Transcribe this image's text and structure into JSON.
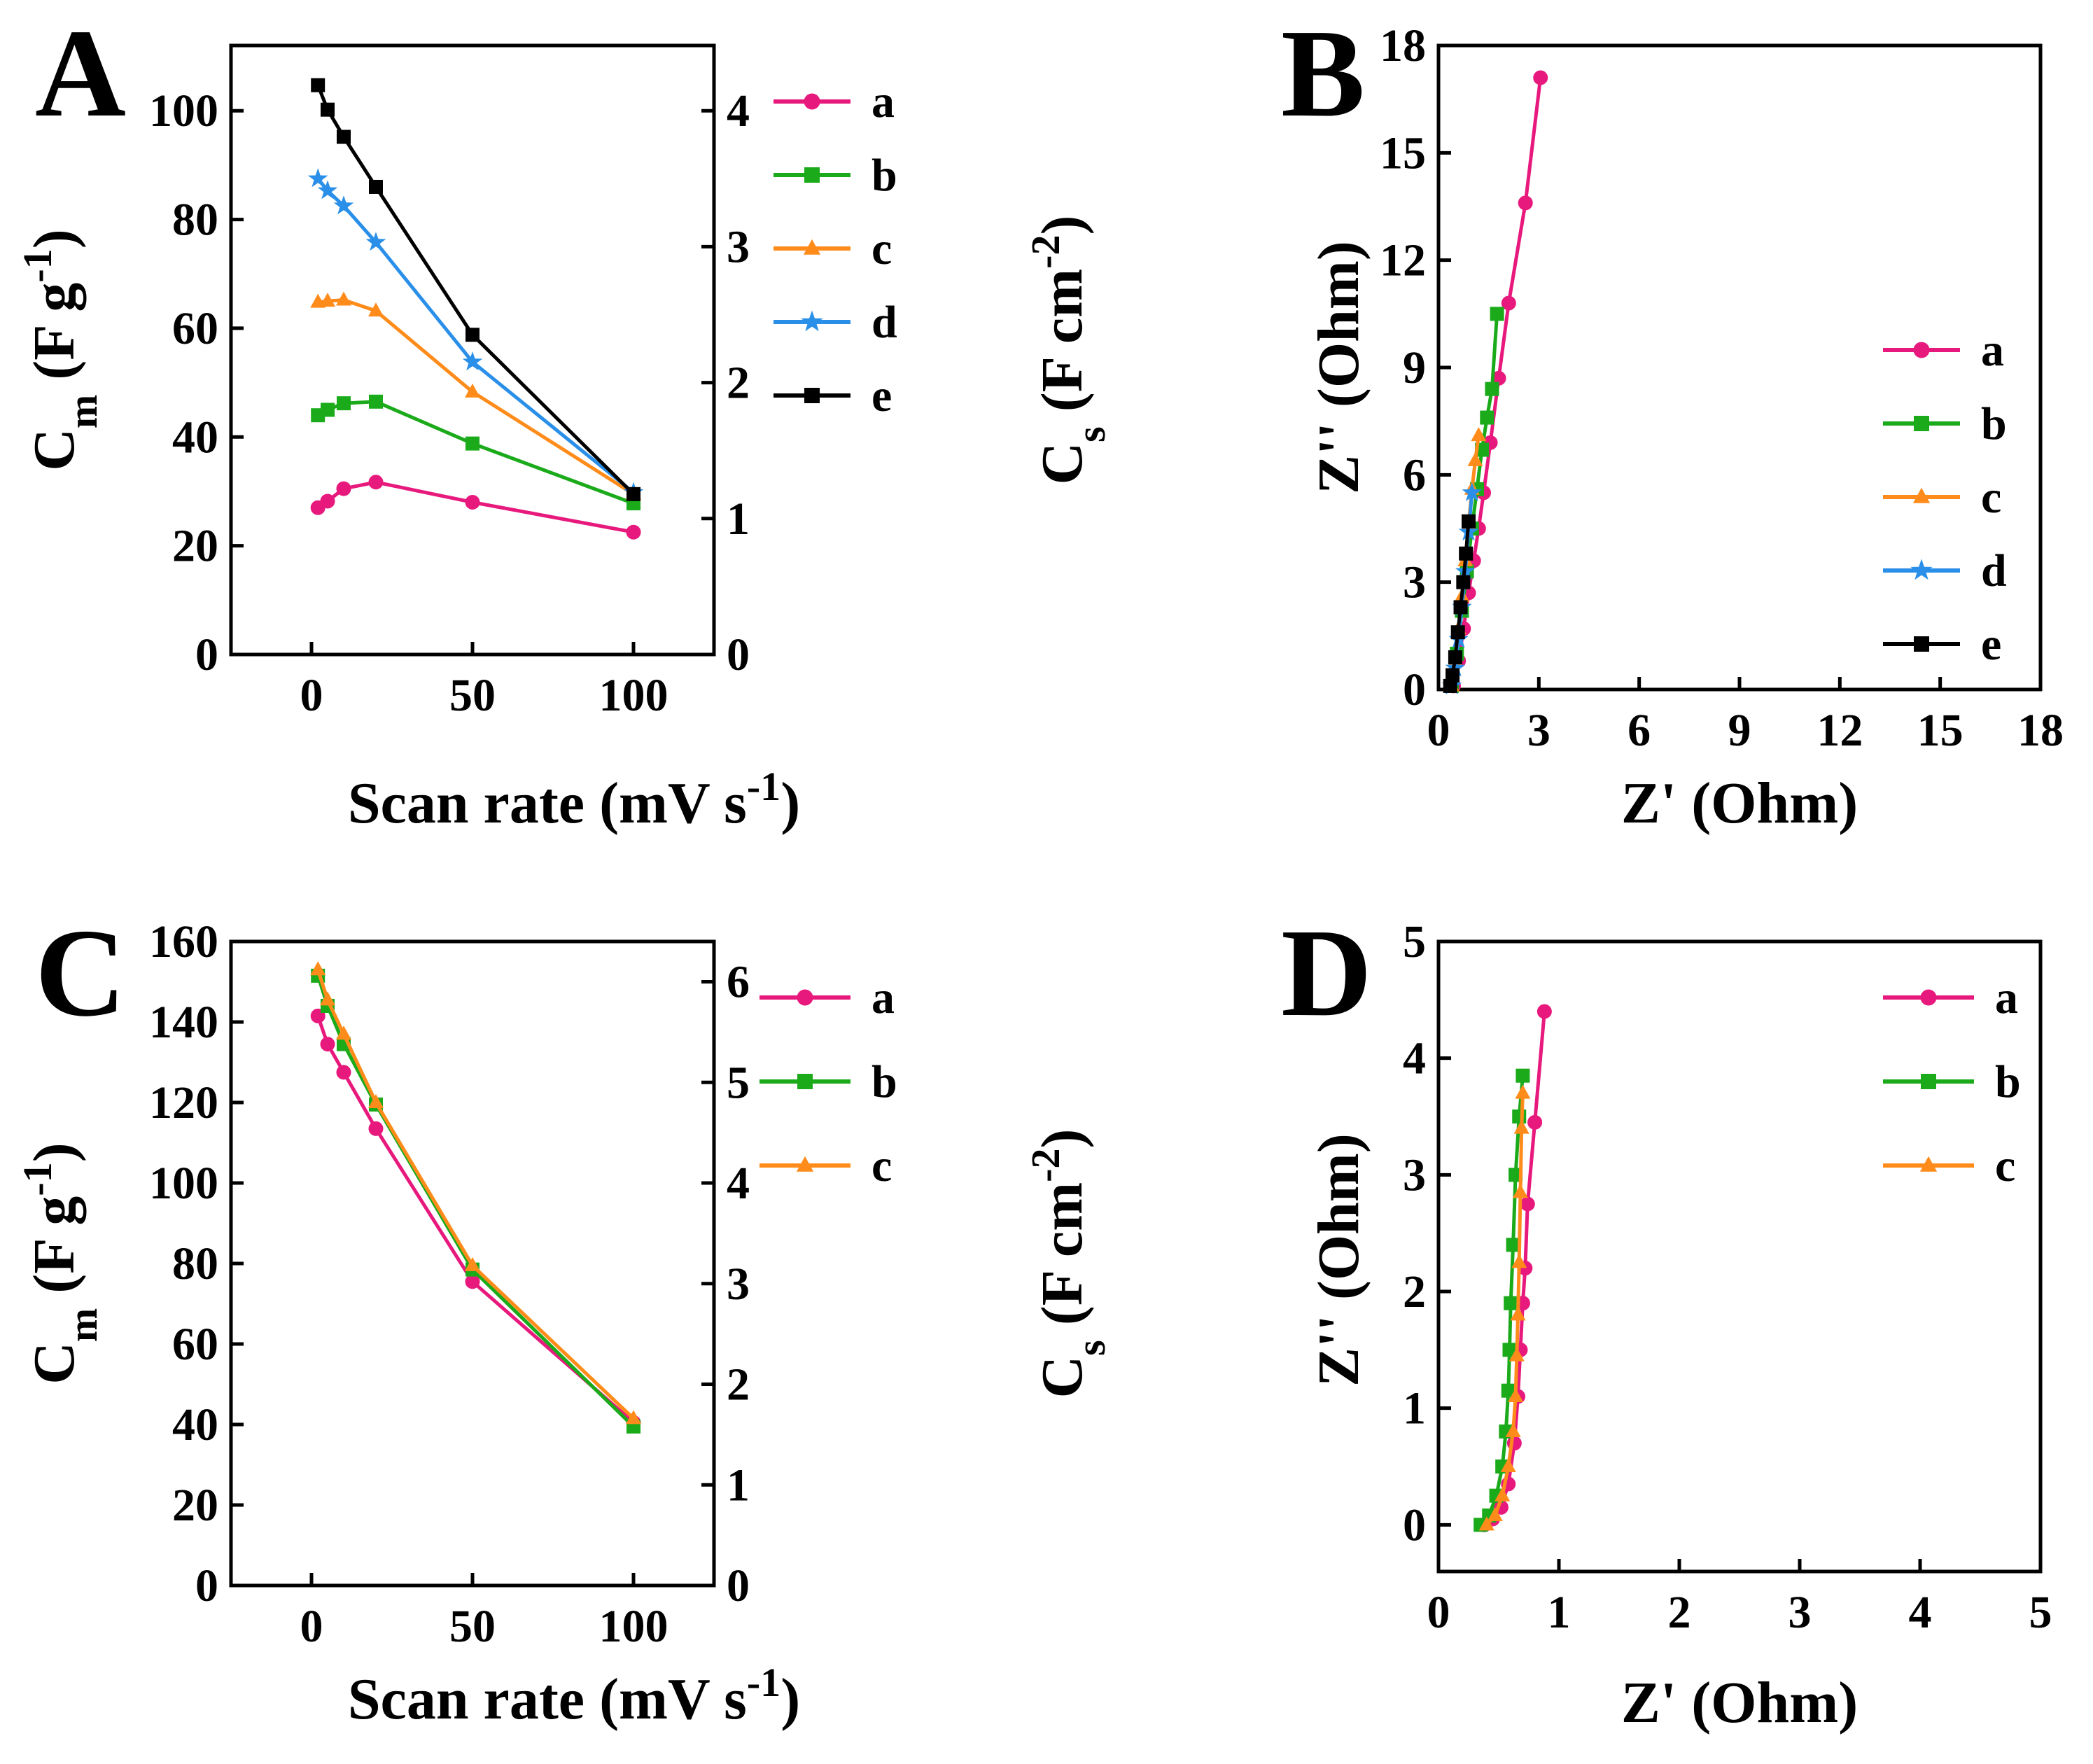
{
  "chart_data": [
    {
      "panel": "A",
      "type": "line",
      "xlabel_main": "Scan rate (mV s",
      "xlabel_sup": "-1",
      "xlabel_end": ")",
      "ylabel_main": "C",
      "ylabel_sub": "m",
      "ylabel_rest": " (F g",
      "ylabel_sup": "-1",
      "ylabel_end": ")",
      "y2label_main": "C",
      "y2label_sub": "s",
      "y2label_rest": " (F cm",
      "y2label_sup": "-2",
      "y2label_end": ")",
      "xlim": [
        -25,
        125
      ],
      "ylim": [
        0,
        112
      ],
      "y2lim": [
        0,
        4.48
      ],
      "xticks": [
        0,
        50,
        100
      ],
      "yticks": [
        0,
        20,
        40,
        60,
        80,
        100
      ],
      "y2ticks": [
        0,
        1,
        2,
        3,
        4
      ],
      "legend_position": "top-right",
      "series": [
        {
          "name": "a",
          "color": "#e8197d",
          "marker": "circle",
          "x": [
            2,
            5,
            10,
            20,
            50,
            100
          ],
          "values": [
            27,
            28.2,
            30.5,
            31.7,
            28,
            22.5
          ]
        },
        {
          "name": "b",
          "color": "#1aaa1a",
          "marker": "square",
          "x": [
            2,
            5,
            10,
            20,
            50,
            100
          ],
          "values": [
            44,
            45,
            46.2,
            46.5,
            38.8,
            27.8
          ]
        },
        {
          "name": "c",
          "color": "#ff8c1a",
          "marker": "triangle",
          "x": [
            2,
            5,
            10,
            20,
            50,
            100
          ],
          "values": [
            64.8,
            65,
            65.2,
            63.2,
            48.3,
            29.5
          ]
        },
        {
          "name": "d",
          "color": "#2a8fe8",
          "marker": "star",
          "x": [
            2,
            5,
            10,
            20,
            50,
            100
          ],
          "values": [
            87.5,
            85.3,
            82.5,
            75.8,
            53.8,
            29.8
          ]
        },
        {
          "name": "e",
          "color": "#000000",
          "marker": "square",
          "x": [
            2,
            5,
            10,
            20,
            50,
            100
          ],
          "values": [
            104.7,
            100.2,
            95.2,
            86,
            58.8,
            29.5
          ]
        }
      ]
    },
    {
      "panel": "B",
      "type": "line",
      "xlabel_main": "Z' (Ohm)",
      "ylabel_main": "Z'' (Ohm)",
      "xlim": [
        0,
        18
      ],
      "ylim": [
        0,
        18
      ],
      "xticks": [
        0,
        3,
        6,
        9,
        12,
        15,
        18
      ],
      "yticks": [
        0,
        3,
        6,
        9,
        12,
        15,
        18
      ],
      "legend_position": "right",
      "series": [
        {
          "name": "a",
          "color": "#e8197d",
          "marker": "circle",
          "x": [
            0.45,
            0.6,
            0.75,
            0.9,
            1.05,
            1.2,
            1.35,
            1.55,
            1.8,
            2.1,
            2.6,
            3.05
          ],
          "values": [
            0.1,
            0.8,
            1.7,
            2.7,
            3.6,
            4.5,
            5.5,
            6.9,
            8.7,
            10.8,
            13.6,
            17.1
          ]
        },
        {
          "name": "b",
          "color": "#1aaa1a",
          "marker": "square",
          "x": [
            0.4,
            0.55,
            0.7,
            0.85,
            1.0,
            1.15,
            1.3,
            1.45,
            1.6,
            1.75
          ],
          "values": [
            0.1,
            1.0,
            2.2,
            3.3,
            4.5,
            5.6,
            6.7,
            7.6,
            8.4,
            10.5
          ]
        },
        {
          "name": "c",
          "color": "#ff8c1a",
          "marker": "triangle",
          "x": [
            0.4,
            0.5,
            0.6,
            0.7,
            0.8,
            0.9,
            1.0,
            1.1,
            1.2
          ],
          "values": [
            0.1,
            0.8,
            1.7,
            2.6,
            3.6,
            4.6,
            5.6,
            6.4,
            7.1
          ]
        },
        {
          "name": "d",
          "color": "#2a8fe8",
          "marker": "star",
          "x": [
            0.4,
            0.5,
            0.6,
            0.7,
            0.8,
            0.9,
            1.0
          ],
          "values": [
            0.1,
            0.6,
            1.4,
            2.3,
            3.3,
            4.4,
            5.5
          ]
        },
        {
          "name": "e",
          "color": "#000000",
          "marker": "square",
          "x": [
            0.35,
            0.42,
            0.5,
            0.58,
            0.66,
            0.74,
            0.82,
            0.9
          ],
          "values": [
            0.1,
            0.4,
            0.9,
            1.6,
            2.3,
            3.0,
            3.8,
            4.7
          ]
        }
      ]
    },
    {
      "panel": "C",
      "type": "line",
      "xlabel_main": "Scan rate (mV s",
      "xlabel_sup": "-1",
      "xlabel_end": ")",
      "ylabel_main": "C",
      "ylabel_sub": "m",
      "ylabel_rest": " (F g",
      "ylabel_sup": "-1",
      "ylabel_end": ")",
      "y2label_main": "C",
      "y2label_sub": "s",
      "y2label_rest": " (F cm",
      "y2label_sup": "-2",
      "y2label_end": ")",
      "xlim": [
        -25,
        125
      ],
      "ylim": [
        0,
        160
      ],
      "y2lim": [
        0,
        6.4
      ],
      "xticks": [
        0,
        50,
        100
      ],
      "yticks": [
        0,
        20,
        40,
        60,
        80,
        100,
        120,
        140,
        160
      ],
      "y2ticks": [
        0,
        1,
        2,
        3,
        4,
        5,
        6
      ],
      "legend_position": "top-right",
      "series": [
        {
          "name": "a",
          "color": "#e8197d",
          "marker": "circle",
          "x": [
            2,
            5,
            10,
            20,
            50,
            100
          ],
          "values": [
            141.5,
            134.5,
            127.5,
            113.5,
            75.5,
            40.5
          ]
        },
        {
          "name": "b",
          "color": "#1aaa1a",
          "marker": "square",
          "x": [
            2,
            5,
            10,
            20,
            50,
            100
          ],
          "values": [
            151.5,
            144,
            134.5,
            119.5,
            78.5,
            39.5
          ]
        },
        {
          "name": "c",
          "color": "#ff8c1a",
          "marker": "triangle",
          "x": [
            2,
            5,
            10,
            20,
            50,
            100
          ],
          "values": [
            153,
            145.5,
            137,
            120,
            79.5,
            41.5
          ]
        }
      ]
    },
    {
      "panel": "D",
      "type": "line",
      "xlabel_main": "Z' (Ohm)",
      "ylabel_main": "Z'' (Ohm)",
      "xlim": [
        0,
        5
      ],
      "ylim": [
        -0.4,
        5
      ],
      "xticks": [
        0,
        1,
        2,
        3,
        4,
        5
      ],
      "yticks": [
        0,
        1,
        2,
        3,
        4,
        5
      ],
      "legend_position": "top-right",
      "series": [
        {
          "name": "a",
          "color": "#e8197d",
          "marker": "circle",
          "x": [
            0.38,
            0.45,
            0.52,
            0.58,
            0.63,
            0.66,
            0.68,
            0.7,
            0.72,
            0.74,
            0.8,
            0.88
          ],
          "values": [
            0.0,
            0.05,
            0.15,
            0.35,
            0.7,
            1.1,
            1.5,
            1.9,
            2.2,
            2.75,
            3.45,
            4.4
          ]
        },
        {
          "name": "b",
          "color": "#1aaa1a",
          "marker": "square",
          "x": [
            0.35,
            0.42,
            0.48,
            0.53,
            0.56,
            0.58,
            0.59,
            0.6,
            0.62,
            0.64,
            0.67,
            0.7
          ],
          "values": [
            0.0,
            0.08,
            0.25,
            0.5,
            0.8,
            1.15,
            1.5,
            1.9,
            2.4,
            3.0,
            3.5,
            3.85
          ]
        },
        {
          "name": "c",
          "color": "#ff8c1a",
          "marker": "triangle",
          "x": [
            0.4,
            0.47,
            0.53,
            0.58,
            0.62,
            0.64,
            0.65,
            0.66,
            0.67,
            0.68,
            0.69,
            0.7
          ],
          "values": [
            0.0,
            0.08,
            0.25,
            0.5,
            0.8,
            1.1,
            1.45,
            1.8,
            2.25,
            2.85,
            3.4,
            3.7
          ]
        }
      ]
    }
  ]
}
